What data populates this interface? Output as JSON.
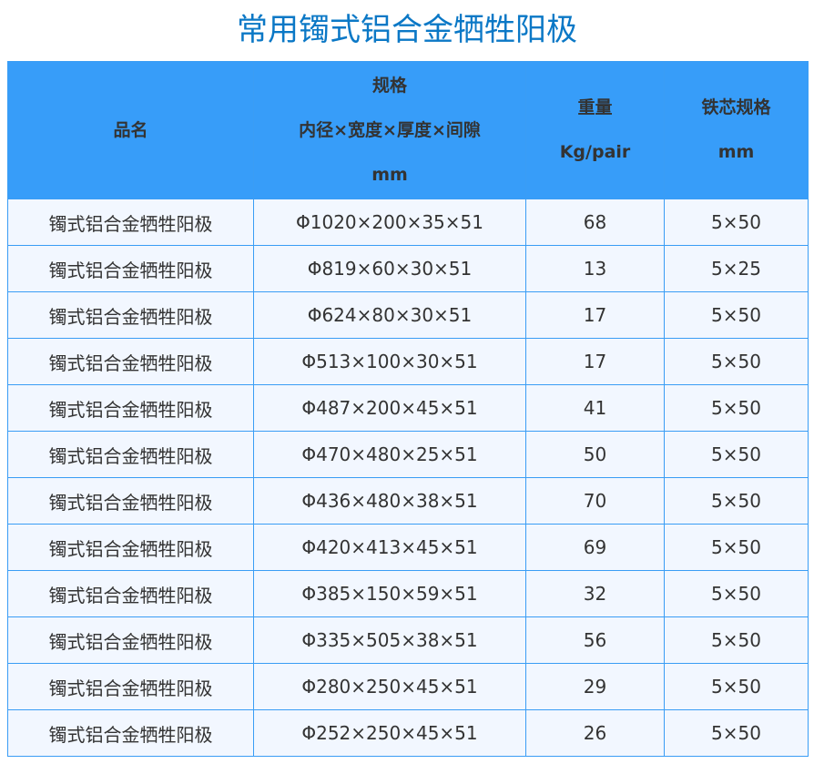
{
  "title": "常用镯式铝合金牺牲阳极",
  "colors": {
    "title": "#0b78c6",
    "header_bg": "#379df9",
    "row_bg": "#f2f7ff",
    "border": "#3a9df5"
  },
  "headers": [
    {
      "lines": [
        "品名"
      ]
    },
    {
      "lines": [
        "规格",
        "内径×宽度×厚度×间隙",
        "mm"
      ]
    },
    {
      "lines": [
        "重量",
        "Kg/pair"
      ]
    },
    {
      "lines": [
        "铁芯规格",
        "mm"
      ]
    }
  ],
  "rows": [
    [
      "镯式铝合金牺牲阳极",
      "Φ1020×200×35×51",
      "68",
      "5×50"
    ],
    [
      "镯式铝合金牺牲阳极",
      "Φ819×60×30×51",
      "13",
      "5×25"
    ],
    [
      "镯式铝合金牺牲阳极",
      "Φ624×80×30×51",
      "17",
      "5×50"
    ],
    [
      "镯式铝合金牺牲阳极",
      "Φ513×100×30×51",
      "17",
      "5×50"
    ],
    [
      "镯式铝合金牺牲阳极",
      "Φ487×200×45×51",
      "41",
      "5×50"
    ],
    [
      "镯式铝合金牺牲阳极",
      "Φ470×480×25×51",
      "50",
      "5×50"
    ],
    [
      "镯式铝合金牺牲阳极",
      "Φ436×480×38×51",
      "70",
      "5×50"
    ],
    [
      "镯式铝合金牺牲阳极",
      "Φ420×413×45×51",
      "69",
      "5×50"
    ],
    [
      "镯式铝合金牺牲阳极",
      "Φ385×150×59×51",
      "32",
      "5×50"
    ],
    [
      "镯式铝合金牺牲阳极",
      "Φ335×505×38×51",
      "56",
      "5×50"
    ],
    [
      "镯式铝合金牺牲阳极",
      "Φ280×250×45×51",
      "29",
      "5×50"
    ],
    [
      "镯式铝合金牺牲阳极",
      "Φ252×250×45×51",
      "26",
      "5×50"
    ]
  ]
}
